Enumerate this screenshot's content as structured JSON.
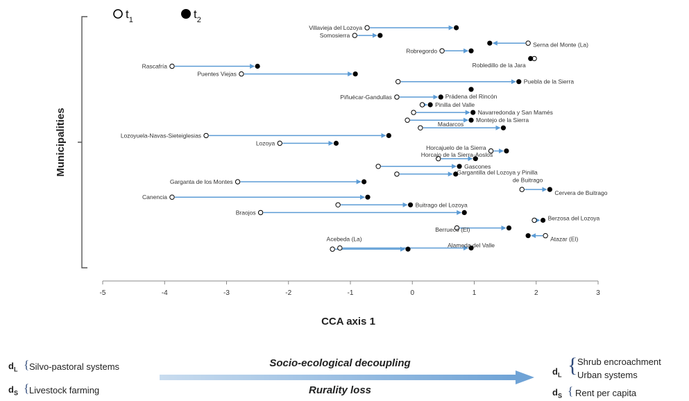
{
  "chart_data": {
    "type": "scatter",
    "xlabel": "CCA axis 1",
    "ylabel": "Municipalities",
    "xlim": [
      -5,
      3
    ],
    "x_ticks": [
      "-5",
      "-4",
      "-3",
      "-2",
      "-1",
      "0",
      "1",
      "2",
      "3"
    ],
    "legend": {
      "placement": "top-left",
      "t1_label": "t",
      "t1_sub": "1",
      "t2_label": "t",
      "t2_sub": "2"
    },
    "points": [
      {
        "name": "Villavieja del Lozoya",
        "t1": -0.73,
        "t2": 0.71
      },
      {
        "name": "Somosierra",
        "t1": -0.93,
        "t2": -0.52
      },
      {
        "name": "Serna del Monte (La)",
        "t1": 1.87,
        "t2": 1.25
      },
      {
        "name": "Robregordo",
        "t1": 0.48,
        "t2": 0.95
      },
      {
        "name": "Robledillo de la Jara",
        "t1": 1.97,
        "t2": 1.91
      },
      {
        "name": "Rascafría",
        "t1": -3.88,
        "t2": -2.5
      },
      {
        "name": "Puentes Viejas",
        "t1": -2.76,
        "t2": -0.92
      },
      {
        "name": "Puebla de la Sierra",
        "t1": -0.23,
        "t2": 1.72
      },
      {
        "name": "Prádena del Rincón",
        "t1": null,
        "t2": 0.95
      },
      {
        "name": "Piñuécar-Gandullas",
        "t1": -0.25,
        "t2": 0.46
      },
      {
        "name": "Pinilla del Valle",
        "t1": 0.16,
        "t2": 0.29
      },
      {
        "name": "Navarredonda y San Mamés",
        "t1": 0.02,
        "t2": 0.98
      },
      {
        "name": "Montejo de la Sierra",
        "t1": -0.08,
        "t2": 0.95
      },
      {
        "name": "Madarcos",
        "t1": 0.13,
        "t2": 1.47
      },
      {
        "name": "Lozoyuela-Navas-Sieteiglesias",
        "t1": -3.33,
        "t2": -0.38
      },
      {
        "name": "Lozoya",
        "t1": -2.14,
        "t2": -1.23
      },
      {
        "name": "Horcajuelo de la Sierra",
        "t1": 1.27,
        "t2": 1.52
      },
      {
        "name": "Horcajo de la Sierra-Aoslos",
        "t1": 0.42,
        "t2": 1.02
      },
      {
        "name": "Gascones",
        "t1": -0.55,
        "t2": 0.76
      },
      {
        "name": "Gargantilla del Lozoya y Pinilla de Buitrago",
        "t1": -0.25,
        "t2": 0.7
      },
      {
        "name": "Garganta de los Montes",
        "t1": -2.82,
        "t2": -0.78
      },
      {
        "name": "Cervera de Buitrago",
        "t1": 1.77,
        "t2": 2.22
      },
      {
        "name": "Canencia",
        "t1": -3.88,
        "t2": -0.72
      },
      {
        "name": "Buitrago del Lozoya",
        "t1": -1.2,
        "t2": -0.03
      },
      {
        "name": "Braojos",
        "t1": -2.45,
        "t2": 0.84
      },
      {
        "name": "Berzosa del Lozoya",
        "t1": 1.97,
        "t2": 2.11
      },
      {
        "name": "Berrueco (El)",
        "t1": 0.72,
        "t2": 1.56
      },
      {
        "name": "Atazar (El)",
        "t1": 2.15,
        "t2": 1.87
      },
      {
        "name": "Alameda del Valle",
        "t1": -1.17,
        "t2": 0.95
      },
      {
        "name": "Acebeda (La)",
        "t1": -1.29,
        "t2": -0.07
      }
    ]
  },
  "footer": {
    "left": [
      {
        "symbol": "d",
        "sub": "L",
        "items": [
          "Silvo-pastoral systems"
        ]
      },
      {
        "symbol": "d",
        "sub": "S",
        "items": [
          "Livestock farming"
        ]
      }
    ],
    "center_top": "Socio-ecological decoupling",
    "center_bottom": "Rurality loss",
    "right": [
      {
        "symbol": "d",
        "sub": "L",
        "items": [
          "Shrub encroachment",
          "Urban systems"
        ]
      },
      {
        "symbol": "d",
        "sub": "S",
        "items": [
          "Rent per capita"
        ]
      }
    ],
    "arrow_color": "#8db4de"
  },
  "colors": {
    "arrow": "#5b9bd5",
    "marker": "#000000",
    "axis": "#666666"
  }
}
